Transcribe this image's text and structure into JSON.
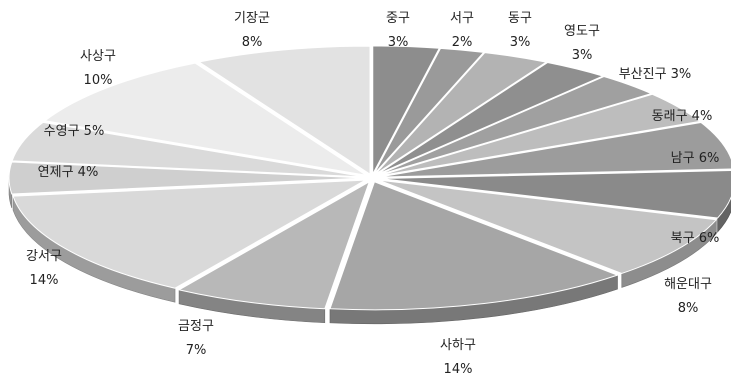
{
  "chart_data": {
    "type": "pie",
    "title": "",
    "style": "3d-exploded",
    "legend": "none",
    "series": [
      {
        "values": [
          {
            "label": "중구",
            "value": 3,
            "pct_text": "3%",
            "color": "#8d8d8d"
          },
          {
            "label": "서구",
            "value": 2,
            "pct_text": "2%",
            "color": "#9a9a9a"
          },
          {
            "label": "동구",
            "value": 3,
            "pct_text": "3%",
            "color": "#b3b3b3"
          },
          {
            "label": "영도구",
            "value": 3,
            "pct_text": "3%",
            "color": "#8f8f8f"
          },
          {
            "label": "부산진구",
            "value": 3,
            "pct_text": "3%",
            "color": "#a0a0a0"
          },
          {
            "label": "동래구",
            "value": 4,
            "pct_text": "4%",
            "color": "#bdbdbd"
          },
          {
            "label": "남구",
            "value": 6,
            "pct_text": "6%",
            "color": "#9c9c9c"
          },
          {
            "label": "북구",
            "value": 6,
            "pct_text": "6%",
            "color": "#8a8a8a"
          },
          {
            "label": "해운대구",
            "value": 8,
            "pct_text": "8%",
            "color": "#c4c4c4"
          },
          {
            "label": "사하구",
            "value": 14,
            "pct_text": "14%",
            "color": "#a6a6a6"
          },
          {
            "label": "금정구",
            "value": 7,
            "pct_text": "7%",
            "color": "#b8b8b8"
          },
          {
            "label": "강서구",
            "value": 14,
            "pct_text": "14%",
            "color": "#d9d9d9"
          },
          {
            "label": "연제구",
            "value": 4,
            "pct_text": "4%",
            "color": "#cfcfcf"
          },
          {
            "label": "수영구",
            "value": 5,
            "pct_text": "5%",
            "color": "#dadada"
          },
          {
            "label": "사상구",
            "value": 10,
            "pct_text": "10%",
            "color": "#ececec"
          },
          {
            "label": "기장군",
            "value": 8,
            "pct_text": "8%",
            "color": "#e2e2e2"
          }
        ]
      }
    ]
  }
}
